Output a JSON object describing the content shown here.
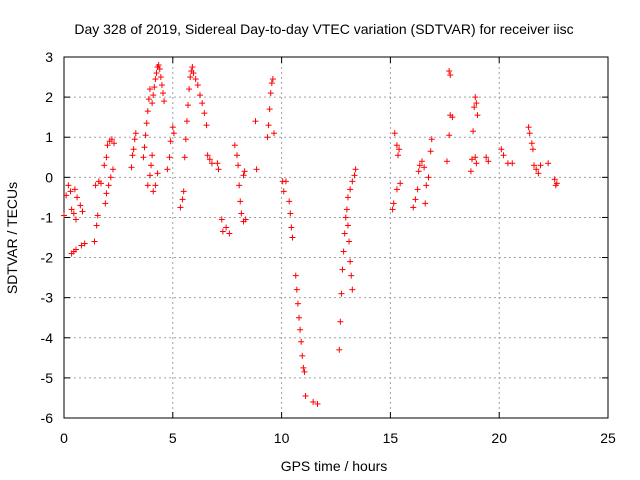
{
  "chart_data": {
    "type": "scatter",
    "title": "Day 328 of 2019, Sidereal Day-to-day VTEC variation (SDTVAR) for receiver iisc",
    "xlabel": "GPS time / hours",
    "ylabel": "SDTVAR / TECUs",
    "xlim": [
      0,
      25
    ],
    "ylim": [
      -6,
      3
    ],
    "x_ticks": [
      0,
      5,
      10,
      15,
      20,
      25
    ],
    "y_ticks": [
      -6,
      -5,
      -4,
      -3,
      -2,
      -1,
      0,
      1,
      2,
      3
    ],
    "x_tick_labels": [
      "0",
      "5",
      "10",
      "15",
      "20",
      "25"
    ],
    "y_tick_labels": [
      "-6",
      "-5",
      "-4",
      "-3",
      "-2",
      "-1",
      "0",
      "1",
      "2",
      "3"
    ],
    "grid": true,
    "marker": "plus",
    "color": "#ff0000",
    "series": [
      {
        "name": "SDTVAR",
        "points": [
          [
            0.0,
            -0.95
          ],
          [
            0.1,
            -0.45
          ],
          [
            0.2,
            -0.2
          ],
          [
            0.3,
            -0.35
          ],
          [
            0.35,
            -0.8
          ],
          [
            0.45,
            -0.9
          ],
          [
            0.55,
            -1.05
          ],
          [
            0.35,
            -1.9
          ],
          [
            0.45,
            -1.85
          ],
          [
            0.55,
            -1.8
          ],
          [
            0.8,
            -1.7
          ],
          [
            0.95,
            -1.65
          ],
          [
            0.5,
            -0.3
          ],
          [
            0.6,
            -0.5
          ],
          [
            0.75,
            -0.7
          ],
          [
            0.85,
            -0.85
          ],
          [
            1.4,
            -1.6
          ],
          [
            1.5,
            -1.2
          ],
          [
            1.55,
            -0.95
          ],
          [
            1.45,
            -0.2
          ],
          [
            1.6,
            -0.1
          ],
          [
            1.7,
            -0.15
          ],
          [
            1.85,
            0.3
          ],
          [
            1.95,
            0.5
          ],
          [
            2.0,
            0.8
          ],
          [
            2.1,
            0.9
          ],
          [
            2.2,
            0.95
          ],
          [
            2.3,
            0.85
          ],
          [
            1.9,
            -0.65
          ],
          [
            1.95,
            -0.4
          ],
          [
            2.05,
            -0.2
          ],
          [
            2.15,
            0.0
          ],
          [
            2.25,
            0.2
          ],
          [
            3.1,
            0.25
          ],
          [
            3.15,
            0.55
          ],
          [
            3.2,
            0.7
          ],
          [
            3.25,
            0.95
          ],
          [
            3.3,
            1.1
          ],
          [
            3.65,
            0.5
          ],
          [
            3.7,
            0.75
          ],
          [
            3.75,
            1.05
          ],
          [
            3.8,
            1.35
          ],
          [
            3.85,
            1.65
          ],
          [
            3.9,
            1.95
          ],
          [
            3.95,
            2.2
          ],
          [
            3.85,
            -0.2
          ],
          [
            3.95,
            0.05
          ],
          [
            4.0,
            0.3
          ],
          [
            4.05,
            0.55
          ],
          [
            4.05,
            1.85
          ],
          [
            4.1,
            2.05
          ],
          [
            4.15,
            2.25
          ],
          [
            4.2,
            2.45
          ],
          [
            4.25,
            2.6
          ],
          [
            4.3,
            2.75
          ],
          [
            4.35,
            2.8
          ],
          [
            4.4,
            2.7
          ],
          [
            4.45,
            2.5
          ],
          [
            4.5,
            2.3
          ],
          [
            4.55,
            2.1
          ],
          [
            4.6,
            1.9
          ],
          [
            4.1,
            -0.35
          ],
          [
            4.2,
            -0.2
          ],
          [
            4.3,
            0.1
          ],
          [
            4.75,
            0.2
          ],
          [
            4.85,
            0.5
          ],
          [
            4.9,
            0.9
          ],
          [
            5.0,
            1.25
          ],
          [
            5.05,
            1.1
          ],
          [
            5.35,
            -0.75
          ],
          [
            5.45,
            -0.55
          ],
          [
            5.5,
            -0.35
          ],
          [
            5.55,
            0.5
          ],
          [
            5.6,
            0.95
          ],
          [
            5.65,
            1.4
          ],
          [
            5.7,
            1.8
          ],
          [
            5.75,
            2.2
          ],
          [
            5.8,
            2.5
          ],
          [
            5.85,
            2.65
          ],
          [
            5.9,
            2.75
          ],
          [
            5.95,
            2.6
          ],
          [
            6.05,
            2.45
          ],
          [
            6.15,
            2.3
          ],
          [
            6.25,
            2.05
          ],
          [
            6.35,
            1.85
          ],
          [
            6.45,
            1.6
          ],
          [
            6.55,
            1.3
          ],
          [
            6.6,
            0.55
          ],
          [
            6.7,
            0.45
          ],
          [
            6.8,
            0.35
          ],
          [
            7.05,
            0.35
          ],
          [
            7.1,
            0.2
          ],
          [
            7.25,
            -1.05
          ],
          [
            7.3,
            -1.35
          ],
          [
            7.45,
            -1.25
          ],
          [
            7.6,
            -1.4
          ],
          [
            7.85,
            0.8
          ],
          [
            7.95,
            0.55
          ],
          [
            8.0,
            0.3
          ],
          [
            8.05,
            -0.2
          ],
          [
            8.1,
            -0.6
          ],
          [
            8.15,
            -0.9
          ],
          [
            8.25,
            -1.1
          ],
          [
            8.35,
            -1.05
          ],
          [
            8.25,
            0.05
          ],
          [
            8.3,
            0.15
          ],
          [
            8.8,
            1.4
          ],
          [
            8.85,
            0.2
          ],
          [
            9.35,
            1.0
          ],
          [
            9.4,
            1.3
          ],
          [
            9.45,
            1.7
          ],
          [
            9.5,
            2.1
          ],
          [
            9.55,
            2.35
          ],
          [
            9.6,
            2.45
          ],
          [
            9.65,
            1.1
          ],
          [
            10.05,
            -0.1
          ],
          [
            10.1,
            -0.35
          ],
          [
            10.2,
            -0.1
          ],
          [
            10.35,
            -0.6
          ],
          [
            10.4,
            -0.9
          ],
          [
            10.45,
            -1.25
          ],
          [
            10.5,
            -1.5
          ],
          [
            10.65,
            -2.45
          ],
          [
            10.7,
            -2.8
          ],
          [
            10.75,
            -3.15
          ],
          [
            10.8,
            -3.5
          ],
          [
            10.85,
            -3.8
          ],
          [
            10.9,
            -4.1
          ],
          [
            10.95,
            -4.45
          ],
          [
            11.0,
            -4.75
          ],
          [
            11.05,
            -4.85
          ],
          [
            11.1,
            -5.45
          ],
          [
            11.45,
            -5.6
          ],
          [
            11.65,
            -5.65
          ],
          [
            12.65,
            -4.3
          ],
          [
            12.7,
            -3.6
          ],
          [
            12.75,
            -2.9
          ],
          [
            12.8,
            -2.3
          ],
          [
            12.85,
            -1.85
          ],
          [
            12.9,
            -1.4
          ],
          [
            12.95,
            -1.0
          ],
          [
            13.0,
            -0.8
          ],
          [
            13.05,
            -1.2
          ],
          [
            13.1,
            -1.6
          ],
          [
            13.15,
            -2.1
          ],
          [
            13.2,
            -2.45
          ],
          [
            13.25,
            -2.8
          ],
          [
            13.05,
            -0.5
          ],
          [
            13.15,
            -0.3
          ],
          [
            13.25,
            -0.1
          ],
          [
            13.35,
            0.05
          ],
          [
            13.4,
            0.2
          ],
          [
            15.1,
            -0.8
          ],
          [
            15.15,
            -0.65
          ],
          [
            15.2,
            1.1
          ],
          [
            15.3,
            0.8
          ],
          [
            15.35,
            0.55
          ],
          [
            15.4,
            0.7
          ],
          [
            15.3,
            -0.3
          ],
          [
            15.45,
            -0.15
          ],
          [
            16.05,
            -0.75
          ],
          [
            16.15,
            -0.55
          ],
          [
            16.25,
            -0.3
          ],
          [
            16.3,
            0.15
          ],
          [
            16.35,
            0.3
          ],
          [
            16.45,
            0.4
          ],
          [
            16.55,
            0.25
          ],
          [
            16.6,
            -0.65
          ],
          [
            16.65,
            -0.2
          ],
          [
            16.75,
            0.0
          ],
          [
            16.85,
            0.65
          ],
          [
            16.9,
            0.95
          ],
          [
            17.6,
            0.4
          ],
          [
            17.7,
            1.05
          ],
          [
            17.75,
            1.55
          ],
          [
            17.85,
            1.5
          ],
          [
            17.7,
            2.65
          ],
          [
            17.75,
            2.55
          ],
          [
            18.7,
            0.15
          ],
          [
            18.75,
            0.45
          ],
          [
            18.8,
            1.15
          ],
          [
            18.85,
            1.75
          ],
          [
            18.9,
            2.0
          ],
          [
            18.95,
            1.85
          ],
          [
            19.0,
            1.55
          ],
          [
            18.9,
            0.5
          ],
          [
            18.95,
            0.35
          ],
          [
            19.4,
            0.5
          ],
          [
            19.5,
            0.4
          ],
          [
            20.1,
            0.7
          ],
          [
            20.2,
            0.55
          ],
          [
            20.4,
            0.35
          ],
          [
            20.6,
            0.35
          ],
          [
            21.35,
            1.25
          ],
          [
            21.4,
            1.1
          ],
          [
            21.5,
            0.85
          ],
          [
            21.55,
            0.7
          ],
          [
            21.6,
            0.3
          ],
          [
            21.7,
            0.2
          ],
          [
            21.8,
            0.1
          ],
          [
            21.9,
            0.3
          ],
          [
            22.25,
            0.35
          ],
          [
            22.55,
            -0.05
          ],
          [
            22.6,
            -0.2
          ],
          [
            22.65,
            -0.15
          ]
        ]
      }
    ]
  }
}
